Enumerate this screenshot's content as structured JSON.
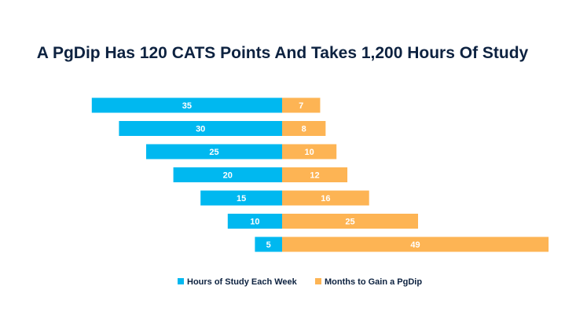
{
  "chart_data": {
    "type": "diverging-bar",
    "title": "A PgDip Has 120 CATS Points And Takes 1,200 Hours Of Study",
    "series": [
      {
        "name": "Hours of Study Each Week",
        "color": "#00b8f0",
        "values": [
          35,
          30,
          25,
          20,
          15,
          10,
          5
        ]
      },
      {
        "name": "Months to Gain a PgDip",
        "color": "#fdb454",
        "values": [
          7,
          8,
          10,
          12,
          16,
          25,
          49
        ]
      }
    ],
    "legend": "bottom"
  }
}
